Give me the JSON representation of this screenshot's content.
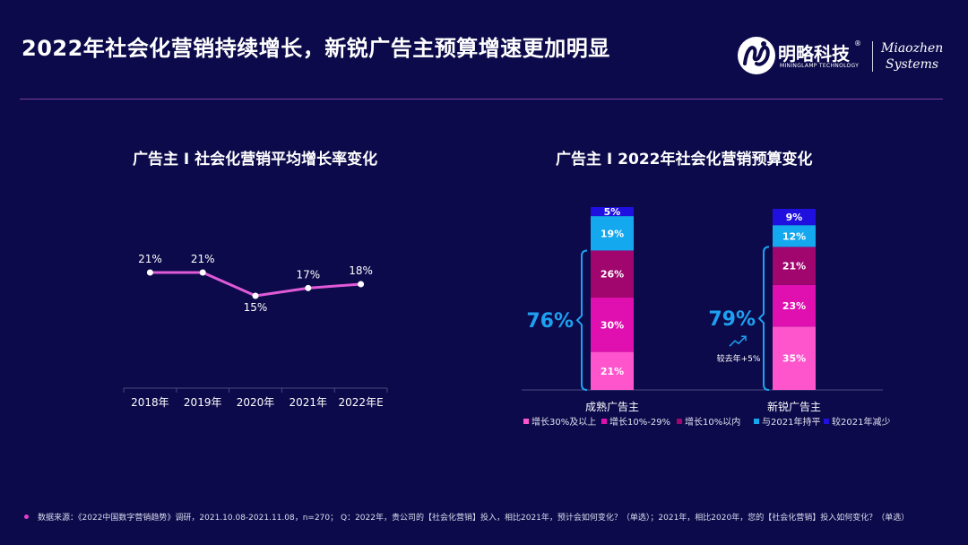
{
  "page": {
    "title": "2022年社会化营销持续增长，新锐广告主预算增速更加明显",
    "footer": "数据来源：《2022中国数字营销趋势》调研，2021.10.08-2021.11.08，n=270；  Q：2022年，贵公司的【社会化营销】投入，相比2021年，预计会如何变化？（单选）；2021年，相比2020年，您的【社会化营销】投入如何变化？（单选）"
  },
  "logo": {
    "cn": "明略科技",
    "en": "MININGLAMP TECHNOLOGY",
    "mz1": "Miaozhen",
    "mz2": "Systems",
    "reg": "®"
  },
  "colors": {
    "background": "#0c0a4a",
    "line": "#e05ad8",
    "accent_blue": "#1ea0f0"
  },
  "chart_data": [
    {
      "type": "line",
      "title": "广告主 I 社会化营销平均增长率变化",
      "categories": [
        "2018年",
        "2019年",
        "2020年",
        "2021年",
        "2022年E"
      ],
      "values": [
        21,
        21,
        15,
        17,
        18
      ],
      "labels": [
        "21%",
        "21%",
        "15%",
        "17%",
        "18%"
      ],
      "ylim": [
        0,
        30
      ]
    },
    {
      "type": "bar",
      "stacked": true,
      "title": "广告主 I 2022年社会化营销预算变化",
      "categories": [
        "成熟广告主",
        "新锐广告主"
      ],
      "series": [
        {
          "name": "增长30%及以上",
          "color": "#ff55cc",
          "values": [
            21,
            35
          ]
        },
        {
          "name": "增长10%-29%",
          "color": "#e010b0",
          "values": [
            30,
            23
          ]
        },
        {
          "name": "增长10%以内",
          "color": "#a0066e",
          "values": [
            26,
            21
          ]
        },
        {
          "name": "与2021年持平",
          "color": "#14a8ef",
          "values": [
            19,
            12
          ]
        },
        {
          "name": "较2021年减少",
          "color": "#1f10e0",
          "values": [
            5,
            9
          ]
        }
      ],
      "growth_totals": [
        "76%",
        "79%"
      ],
      "annotation": "较去年+5%"
    }
  ]
}
